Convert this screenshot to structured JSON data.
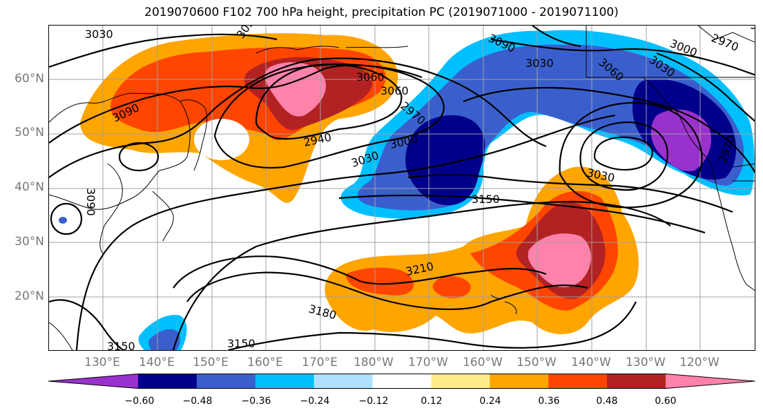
{
  "title": "2019070600 F102 700 hPa height, precipitation PC (2019071000 - 2019071100)",
  "lat_ticks": [
    "60°N",
    "50°N",
    "40°N",
    "30°N",
    "20°N"
  ],
  "lon_ticks": [
    "130°E",
    "140°E",
    "150°E",
    "160°E",
    "170°E",
    "180°W",
    "170°W",
    "160°W",
    "150°W",
    "140°W",
    "130°W",
    "120°W"
  ],
  "contour_labels": [
    "3030",
    "3090",
    "3060",
    "2940",
    "2970",
    "3000",
    "3030",
    "3150",
    "3030",
    "3090",
    "3060",
    "3000",
    "3030",
    "2970",
    "3090",
    "3210",
    "3180",
    "3150",
    "3150",
    "3030",
    "3060",
    "3030",
    "2970",
    "3000"
  ],
  "colorbar": {
    "ticks": [
      "−0.60",
      "−0.48",
      "−0.36",
      "−0.24",
      "−0.12",
      "0.12",
      "0.24",
      "0.36",
      "0.48",
      "0.60"
    ],
    "colors": [
      "#9932cc",
      "#00008b",
      "#3a5fcd",
      "#00bfff",
      "#b0e2ff",
      "#ffffff",
      "#ffec8b",
      "#ffa500",
      "#ff4500",
      "#b22222",
      "#ff82ab"
    ]
  }
}
